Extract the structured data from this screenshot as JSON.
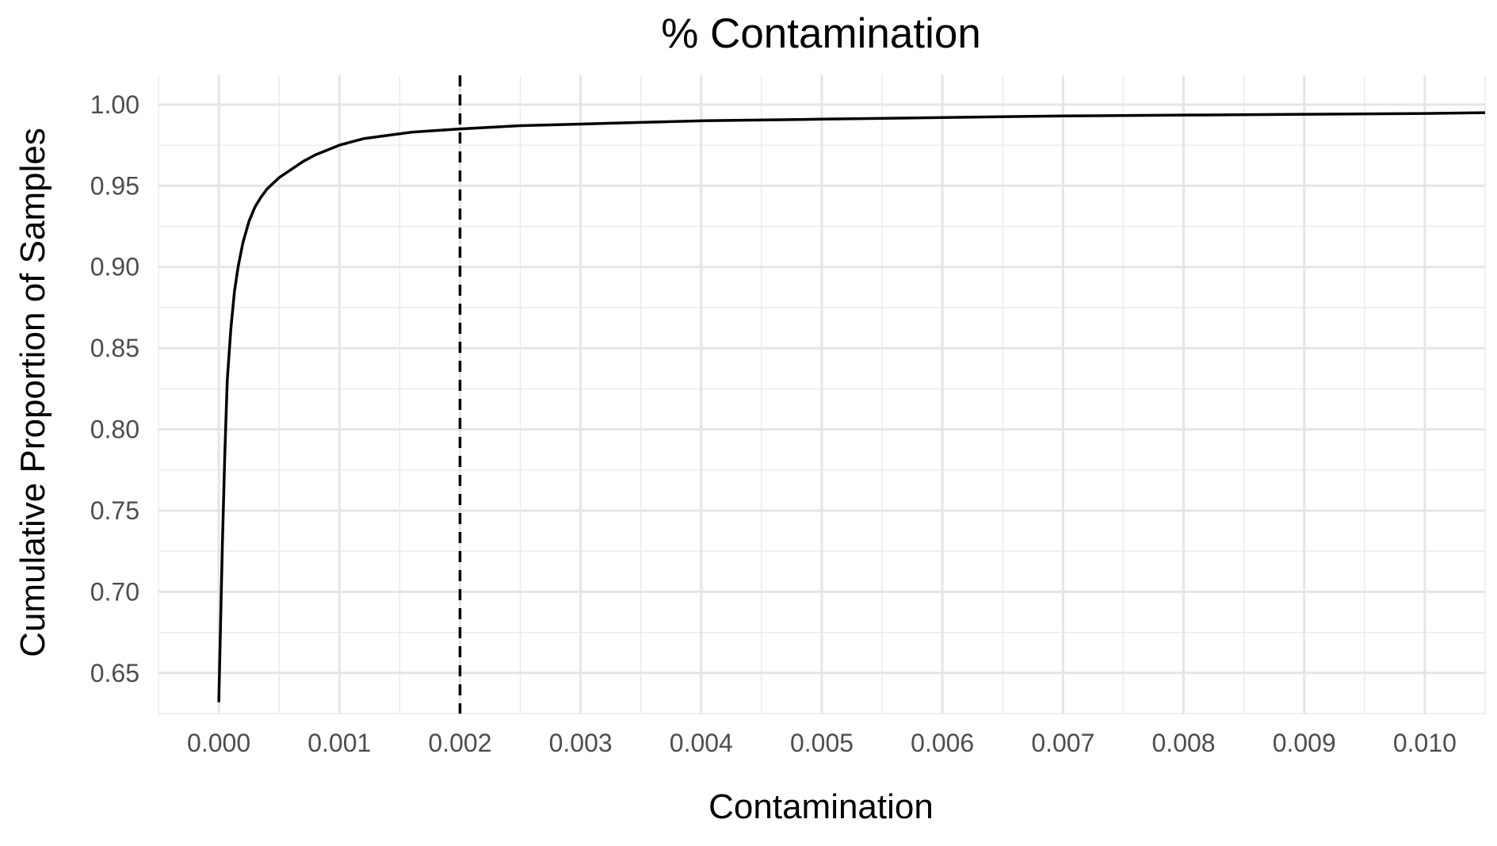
{
  "chart_data": {
    "type": "line",
    "title": "% Contamination",
    "xlabel": "Contamination",
    "ylabel": "Cumulative Proportion of Samples",
    "xlim": [
      -0.0005,
      0.0105
    ],
    "ylim": [
      0.625,
      1.018
    ],
    "x_ticks": [
      0.0,
      0.001,
      0.002,
      0.003,
      0.004,
      0.005,
      0.006,
      0.007,
      0.008,
      0.009,
      0.01
    ],
    "x_tick_labels": [
      "0.000",
      "0.001",
      "0.002",
      "0.003",
      "0.004",
      "0.005",
      "0.006",
      "0.007",
      "0.008",
      "0.009",
      "0.010"
    ],
    "y_ticks": [
      0.65,
      0.7,
      0.75,
      0.8,
      0.85,
      0.9,
      0.95,
      1.0
    ],
    "y_tick_labels": [
      "0.65",
      "0.70",
      "0.75",
      "0.80",
      "0.85",
      "0.90",
      "0.95",
      "1.00"
    ],
    "grid": true,
    "legend": "none",
    "series": [
      {
        "style": "solid",
        "color": "#000000",
        "x": [
          0.0,
          1e-05,
          3e-05,
          5e-05,
          7e-05,
          0.0001,
          0.00013,
          0.00016,
          0.0002,
          0.00025,
          0.0003,
          0.00035,
          0.0004,
          0.0005,
          0.0006,
          0.0007,
          0.0008,
          0.0009,
          0.001,
          0.0011,
          0.0012,
          0.0014,
          0.0016,
          0.0018,
          0.002,
          0.0025,
          0.003,
          0.0035,
          0.004,
          0.005,
          0.006,
          0.007,
          0.008,
          0.009,
          0.01,
          0.0105
        ],
        "y": [
          0.632,
          0.665,
          0.73,
          0.785,
          0.83,
          0.862,
          0.885,
          0.9,
          0.915,
          0.928,
          0.937,
          0.943,
          0.948,
          0.955,
          0.96,
          0.965,
          0.969,
          0.972,
          0.975,
          0.977,
          0.979,
          0.981,
          0.983,
          0.984,
          0.985,
          0.987,
          0.988,
          0.989,
          0.99,
          0.991,
          0.992,
          0.993,
          0.9935,
          0.994,
          0.9945,
          0.995
        ]
      }
    ],
    "reference_lines": [
      {
        "axis": "x",
        "value": 0.002,
        "style": "dashed",
        "color": "#000000"
      }
    ]
  }
}
